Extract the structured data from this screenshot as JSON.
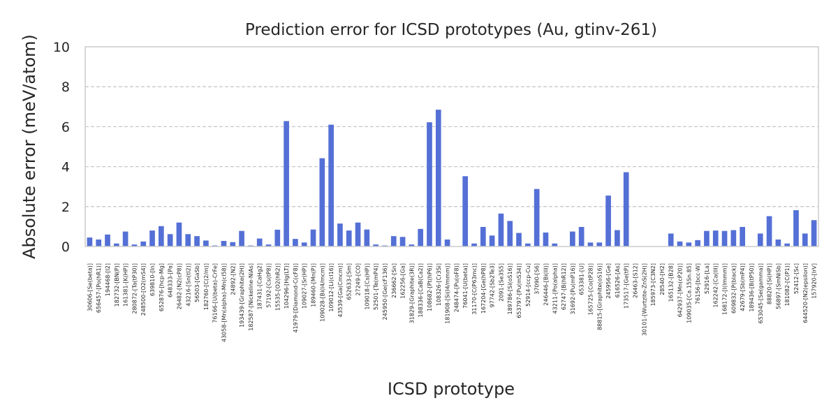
{
  "chart_data": {
    "type": "bar",
    "title": "Prediction error for ICSD prototypes (Au, gtinv-261)",
    "xlabel": "ICSD prototype",
    "ylabel": "Absolute error (meV/atom)",
    "ylim": [
      0,
      10
    ],
    "yticks": [
      0,
      2,
      4,
      6,
      8,
      10
    ],
    "grid": "y-dashed",
    "bar_color": "#5470d6",
    "categories": [
      "30606-[Se(beta)]",
      "656457-[Po(hR1)]",
      "194468-[I2]",
      "182732-[BN(P)]",
      "161381-[K(HP)]",
      "280872-[Ta(tP30)]",
      "248500-[O2(mS4)]",
      "639810-[In]",
      "652876-[hcp-Mg]",
      "648333-[Pa]",
      "26482-[N2(cP8)]",
      "43216-[Sn(tI2)]",
      "56503-[GaSb]",
      "182760-[C(2/m)]",
      "76166-[U(beta)-CrFe]",
      "43058-[Mn(alpha)-Mn(cI58)]",
      "24892-[N2]",
      "193439-[Graphite(2H)]",
      "182587-[Nickeline-NiAs]",
      "187431-[CaHg2]",
      "57192-[Cs(tP8)]",
      "15535-[O2(hR2)]",
      "104296-[Hg(LT)]",
      "41979-[Diamond-C(cF8)]",
      "109027-[Sr(HP)]",
      "189460-[Mn(P)]",
      "109028-[Bi(I4/mcm)]",
      "109012-[Li(cI16)]",
      "43539-[Ga(Cmcm)]",
      "652633-[Sm]",
      "27249-[CO]",
      "109018-[Cs(HP)]",
      "52501-[Te(mP4)]",
      "245950-[Ge(cF136)]",
      "236662-[Sn]",
      "162256-[Ga]",
      "31829-[Graphite(3R)]",
      "188336-[CaB(Ca2)]",
      "108682-[Pt(hP6)]",
      "108326-[Cr3Si]",
      "181908-[Si(I4/mmm)]",
      "248474-[Pu(oF8)]",
      "76041-[U(beta)]",
      "31170-[C(P63mc)]",
      "167204-[Ge(hP8)]",
      "97742-[Sb2Te3]",
      "2091-[Se3S5]",
      "189786-[Si(oS16)]",
      "653797-[Pu(mS34)]",
      "52914-[ccp-Cu]",
      "37090-[S6]",
      "246446-[Bi(III)]",
      "43211-[Po(alpha)]",
      "62747-[B(hR12)]",
      "31692-[Pu(mP16)]",
      "653381-[U]",
      "165725-[Co(tP28)]",
      "88815-[Graphite(oS16)]",
      "245956-[Ge]",
      "616526-[As]",
      "173517-[Ge(tP)]",
      "26463-[S12]",
      "30101-[Wurtzite-ZnS(2H)]",
      "185973-[C3N2]",
      "28540-[H2]",
      "165132-[B28]",
      "642937-[Mn(cP20)]",
      "109035-[Ca.15Sn.85]",
      "76156-[bcc-W]",
      "52916-[La]",
      "162242-[Ca(III)]",
      "168172-[I(Immm)]",
      "609832-[P(black)]",
      "42679-[Sb(mP4)]",
      "189436-[B(tP50)]",
      "653045-[Se(gamma)]",
      "88820-[Si(HP)]",
      "56897-[SmNiSb]",
      "181082-[C(P1)]",
      "52412-[Sc]",
      "644520-[N2(epsilon)]",
      "157920-[IrV]"
    ],
    "values": [
      0.45,
      0.35,
      0.6,
      0.15,
      0.75,
      0.1,
      0.25,
      0.8,
      1.02,
      0.62,
      1.2,
      0.62,
      0.52,
      0.3,
      0.05,
      0.28,
      0.22,
      0.78,
      0.05,
      0.4,
      0.1,
      0.84,
      6.28,
      0.38,
      0.2,
      0.85,
      4.42,
      6.1,
      1.15,
      0.8,
      1.2,
      0.85,
      0.1,
      0.05,
      0.52,
      0.48,
      0.1,
      0.88,
      6.22,
      6.85,
      0.35,
      0.0,
      3.52,
      0.15,
      0.98,
      0.55,
      1.65,
      1.28,
      0.68,
      0.15,
      2.88,
      0.7,
      0.15,
      0.0,
      0.75,
      0.98,
      0.2,
      0.2,
      2.55,
      0.82,
      3.72,
      0.0,
      0.0,
      0.0,
      0.0,
      0.65,
      0.25,
      0.2,
      0.32,
      0.78,
      0.8,
      0.78,
      0.82,
      0.98,
      0.0,
      0.65,
      1.52,
      0.35,
      0.15,
      1.82,
      0.65,
      1.32
    ]
  }
}
